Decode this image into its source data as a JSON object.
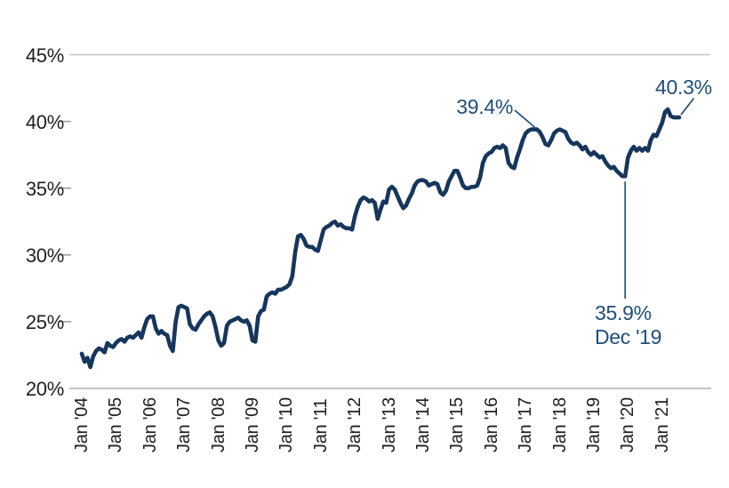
{
  "chart_data": {
    "type": "line",
    "title": "",
    "grid": {
      "top_line": true,
      "bottom_line": true,
      "inner_gridlines": false,
      "legend": "none"
    },
    "y_axis": {
      "unit": "%",
      "min": 20,
      "max": 45,
      "tick_step": 5,
      "tick_labels": [
        "45%",
        "40%",
        "35%",
        "30%",
        "25%",
        "20%"
      ],
      "tick_values": [
        45,
        40,
        35,
        30,
        25,
        20
      ]
    },
    "x_axis": {
      "tick_labels": [
        "Jan '04",
        "Jan '05",
        "Jan '06",
        "Jan '07",
        "Jan '08",
        "Jan '09",
        "Jan '10",
        "Jan '11",
        "Jan '12",
        "Jan '13",
        "Jan '14",
        "Jan '15",
        "Jan '16",
        "Jan '17",
        "Jan '18",
        "Jan '19",
        "Jan '20",
        "Jan '21"
      ],
      "frequency": "monthly",
      "start": "Jan 2004",
      "end": "Jul 2021"
    },
    "series": [
      {
        "name": "value",
        "color": "#16365C",
        "values": [
          22.6,
          22.0,
          22.3,
          21.6,
          22.4,
          22.8,
          23.0,
          22.9,
          22.7,
          23.4,
          23.2,
          23.1,
          23.4,
          23.6,
          23.7,
          23.5,
          23.8,
          23.9,
          23.8,
          24.0,
          24.2,
          23.8,
          24.6,
          25.2,
          25.4,
          25.4,
          24.5,
          24.1,
          24.3,
          24.1,
          24.0,
          23.2,
          22.8,
          25.0,
          26.1,
          26.2,
          26.1,
          26.0,
          24.8,
          24.5,
          24.4,
          24.8,
          25.1,
          25.4,
          25.6,
          25.7,
          25.4,
          24.6,
          23.6,
          23.2,
          23.4,
          24.7,
          25.0,
          25.1,
          25.2,
          25.3,
          25.1,
          25.0,
          25.1,
          24.7,
          23.6,
          23.5,
          25.4,
          25.8,
          25.9,
          26.9,
          27.1,
          27.2,
          27.1,
          27.4,
          27.4,
          27.5,
          27.6,
          27.8,
          28.4,
          30.2,
          31.4,
          31.5,
          31.2,
          30.7,
          30.6,
          30.6,
          30.4,
          30.3,
          31.1,
          31.9,
          32.1,
          32.2,
          32.4,
          32.5,
          32.2,
          32.3,
          32.1,
          32.0,
          32.0,
          31.9,
          32.9,
          33.6,
          34.1,
          34.3,
          34.2,
          34.0,
          34.1,
          33.9,
          32.7,
          33.4,
          34.0,
          33.9,
          34.9,
          35.1,
          34.9,
          34.4,
          33.9,
          33.5,
          33.7,
          34.2,
          34.6,
          35.2,
          35.5,
          35.6,
          35.6,
          35.5,
          35.2,
          35.3,
          35.4,
          35.3,
          34.7,
          34.5,
          34.8,
          35.5,
          35.9,
          36.3,
          36.3,
          35.8,
          35.2,
          35.0,
          35.0,
          35.1,
          35.1,
          35.2,
          35.8,
          36.9,
          37.4,
          37.6,
          37.7,
          38.0,
          38.1,
          38.0,
          38.2,
          38.0,
          36.9,
          36.6,
          36.5,
          37.3,
          37.9,
          38.6,
          39.1,
          39.3,
          39.4,
          39.4,
          39.4,
          39.2,
          38.8,
          38.3,
          38.2,
          38.6,
          39.1,
          39.3,
          39.4,
          39.3,
          39.2,
          38.7,
          38.4,
          38.3,
          38.4,
          38.2,
          37.9,
          38.1,
          37.7,
          37.5,
          37.7,
          37.5,
          37.3,
          37.4,
          37.0,
          36.7,
          36.5,
          36.6,
          36.3,
          36.1,
          35.9,
          35.9,
          37.3,
          37.8,
          38.1,
          37.8,
          38.0,
          37.8,
          38.0,
          37.8,
          38.6,
          39.0,
          38.9,
          39.4,
          39.9,
          40.7,
          40.9,
          40.4,
          40.3,
          40.3,
          40.3
        ]
      }
    ],
    "annotations": [
      {
        "text": "39.4%",
        "points_to": "May 2017"
      },
      {
        "text": "35.9%",
        "text_line2": "Dec '19",
        "points_to": "Dec 2019"
      },
      {
        "text": "40.3%",
        "points_to": "Jul 2021"
      }
    ]
  },
  "colors": {
    "line": "#16365C",
    "annotation_text": "#1F4E79",
    "axis_text": "#1F1F1F",
    "gridline": "#C6C6C6",
    "axis_line": "#B0B0B0",
    "tick": "#9B9B9B",
    "background": "#FFFFFF"
  }
}
